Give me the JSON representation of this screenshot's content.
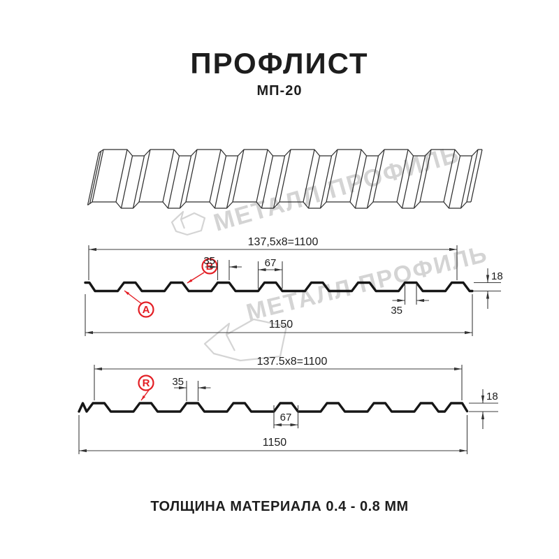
{
  "header": {
    "title": "ПРОФЛИСТ",
    "subtitle": "МП-20"
  },
  "watermark": {
    "text": "МЕТАЛЛ ПРОФИЛЬ"
  },
  "diagram_top": {
    "module_width": "137,5x8=1100",
    "rib_top_width": "35",
    "rib_base_width": "67",
    "profile_height": "18",
    "rib_top_width_bottom": "35",
    "overall_width": "1150",
    "marker_a": "A",
    "marker_b": "B"
  },
  "diagram_bottom": {
    "module_width": "137.5x8=1100",
    "rib_top_width": "35",
    "rib_base_width": "67",
    "profile_height": "18",
    "overall_width": "1150",
    "marker_r": "R"
  },
  "footer": {
    "text": "ТОЛЩИНА МАТЕРИАЛА 0.4 - 0.8 ММ"
  },
  "colors": {
    "accent_red": "#e31e24",
    "drawing_line": "#3d3d3d",
    "profile_line": "#161616",
    "watermark_gray": "#d4d4d4"
  }
}
